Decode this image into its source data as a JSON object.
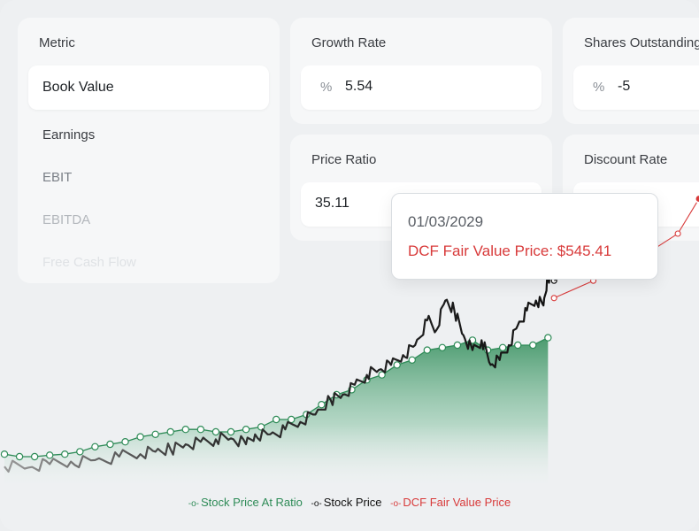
{
  "metric": {
    "label": "Metric",
    "selected": "Book Value",
    "options": [
      "Earnings",
      "EBIT",
      "EBITDA",
      "Free Cash Flow"
    ]
  },
  "growth_rate": {
    "label": "Growth Rate",
    "unit": "%",
    "value": "5.54"
  },
  "shares_outstanding": {
    "label": "Shares Outstanding",
    "unit": "%",
    "value": "-5"
  },
  "price_ratio": {
    "label": "Price Ratio",
    "value": "35.11"
  },
  "discount_rate": {
    "label": "Discount Rate"
  },
  "tooltip": {
    "date": "01/03/2029",
    "dcf_text": "DCF Fair Value Price: $545.41"
  },
  "legend": {
    "ratio": "Stock Price At Ratio",
    "price": "Stock Price",
    "dcf": "DCF Fair Value Price"
  },
  "colors": {
    "ratio": "#2e8b57",
    "price": "#111111",
    "dcf": "#d83a3a"
  },
  "chart_data": {
    "type": "line",
    "title": "",
    "xlabel": "",
    "ylabel": "",
    "x_range": [
      2008,
      2031
    ],
    "y_range": [
      0,
      700
    ],
    "grid": false,
    "legend_position": "bottom",
    "series": [
      {
        "name": "Stock Price At Ratio",
        "points": [
          [
            2008.0,
            30
          ],
          [
            2008.5,
            25
          ],
          [
            2009.0,
            25
          ],
          [
            2009.5,
            28
          ],
          [
            2010.0,
            30
          ],
          [
            2010.5,
            35
          ],
          [
            2011.0,
            45
          ],
          [
            2011.5,
            50
          ],
          [
            2012.0,
            55
          ],
          [
            2012.5,
            65
          ],
          [
            2013.0,
            70
          ],
          [
            2013.5,
            75
          ],
          [
            2014.0,
            80
          ],
          [
            2014.5,
            80
          ],
          [
            2015.0,
            75
          ],
          [
            2015.5,
            75
          ],
          [
            2016.0,
            80
          ],
          [
            2016.5,
            85
          ],
          [
            2017.0,
            100
          ],
          [
            2017.5,
            100
          ],
          [
            2018.0,
            110
          ],
          [
            2018.5,
            130
          ],
          [
            2019.0,
            150
          ],
          [
            2019.5,
            160
          ],
          [
            2020.0,
            180
          ],
          [
            2020.5,
            190
          ],
          [
            2021.0,
            210
          ],
          [
            2021.5,
            220
          ],
          [
            2022.0,
            240
          ],
          [
            2022.5,
            245
          ],
          [
            2023.0,
            250
          ],
          [
            2023.5,
            260
          ],
          [
            2024.0,
            240
          ],
          [
            2024.5,
            245
          ],
          [
            2025.0,
            250
          ],
          [
            2025.5,
            250
          ],
          [
            2026.0,
            265
          ]
        ]
      },
      {
        "name": "Stock Price",
        "points": [
          [
            2008.0,
            5
          ],
          [
            2008.8,
            3
          ],
          [
            2009.5,
            10
          ],
          [
            2010.2,
            15
          ],
          [
            2011.0,
            18
          ],
          [
            2011.8,
            25
          ],
          [
            2012.5,
            30
          ],
          [
            2013.0,
            35
          ],
          [
            2013.5,
            40
          ],
          [
            2014.0,
            50
          ],
          [
            2014.5,
            55
          ],
          [
            2015.0,
            60
          ],
          [
            2015.5,
            62
          ],
          [
            2016.0,
            50
          ],
          [
            2016.3,
            70
          ],
          [
            2016.8,
            70
          ],
          [
            2017.3,
            80
          ],
          [
            2017.8,
            95
          ],
          [
            2018.3,
            110
          ],
          [
            2018.8,
            140
          ],
          [
            2019.2,
            150
          ],
          [
            2019.6,
            170
          ],
          [
            2020.0,
            190
          ],
          [
            2020.4,
            200
          ],
          [
            2020.8,
            210
          ],
          [
            2021.2,
            230
          ],
          [
            2021.6,
            250
          ],
          [
            2022.0,
            300
          ],
          [
            2022.3,
            280
          ],
          [
            2022.6,
            340
          ],
          [
            2022.9,
            320
          ],
          [
            2023.2,
            270
          ],
          [
            2023.5,
            240
          ],
          [
            2023.8,
            260
          ],
          [
            2024.1,
            210
          ],
          [
            2024.4,
            220
          ],
          [
            2024.7,
            250
          ],
          [
            2025.0,
            290
          ],
          [
            2025.3,
            320
          ],
          [
            2025.6,
            340
          ],
          [
            2025.85,
            330
          ],
          [
            2026.0,
            390
          ],
          [
            2026.2,
            380
          ]
        ]
      },
      {
        "name": "DCF Fair Value Price",
        "points": [
          [
            2026.2,
            345
          ],
          [
            2027.5,
            380
          ],
          [
            2028.9,
            420
          ],
          [
            2030.3,
            475
          ],
          [
            2031.0,
            545.41
          ]
        ]
      }
    ]
  }
}
